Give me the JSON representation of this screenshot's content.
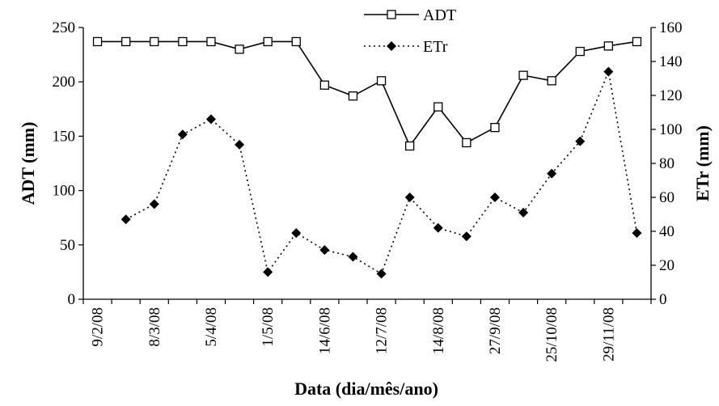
{
  "chart_data": {
    "type": "line",
    "title": "",
    "xlabel": "Data (dia/mês/ano)",
    "ylabel_left": "ADT (mm)",
    "ylabel_right": "ETr (mm)",
    "x_tick_labels": [
      "9/2/08",
      "8/3/08",
      "5/4/08",
      "1/5/08",
      "14/6/08",
      "12/7/08",
      "14/8/08",
      "27/9/08",
      "25/10/08",
      "29/11/08"
    ],
    "y_left": {
      "min": 0,
      "max": 250,
      "ticks": [
        0,
        50,
        100,
        150,
        200,
        250
      ]
    },
    "y_right": {
      "min": 0,
      "max": 160,
      "ticks": [
        0,
        20,
        40,
        60,
        80,
        100,
        120,
        140,
        160
      ]
    },
    "legend_position": "top-center",
    "series": [
      {
        "name": "ADT",
        "axis": "left",
        "marker": "open-square",
        "line": "solid",
        "points": [
          [
            0,
            237
          ],
          [
            1,
            237
          ],
          [
            2,
            237
          ],
          [
            3,
            237
          ],
          [
            4,
            237
          ],
          [
            5,
            230
          ],
          [
            6,
            237
          ],
          [
            7,
            237
          ],
          [
            8,
            197
          ],
          [
            9,
            187
          ],
          [
            10,
            201
          ],
          [
            11,
            141
          ],
          [
            12,
            177
          ],
          [
            13,
            144
          ],
          [
            14,
            158
          ],
          [
            15,
            206
          ],
          [
            16,
            201
          ],
          [
            17,
            228
          ],
          [
            18,
            233
          ],
          [
            19,
            237
          ]
        ]
      },
      {
        "name": "ETr",
        "axis": "right",
        "marker": "filled-diamond",
        "line": "dotted",
        "points": [
          [
            1,
            47
          ],
          [
            2,
            56
          ],
          [
            3,
            97
          ],
          [
            4,
            106
          ],
          [
            5,
            91
          ],
          [
            6,
            16
          ],
          [
            7,
            39
          ],
          [
            8,
            29
          ],
          [
            9,
            25
          ],
          [
            10,
            15
          ],
          [
            11,
            60
          ],
          [
            12,
            42
          ],
          [
            13,
            37
          ],
          [
            14,
            60
          ],
          [
            15,
            51
          ],
          [
            16,
            74
          ],
          [
            17,
            93
          ],
          [
            18,
            134
          ],
          [
            19,
            39
          ]
        ]
      }
    ]
  }
}
